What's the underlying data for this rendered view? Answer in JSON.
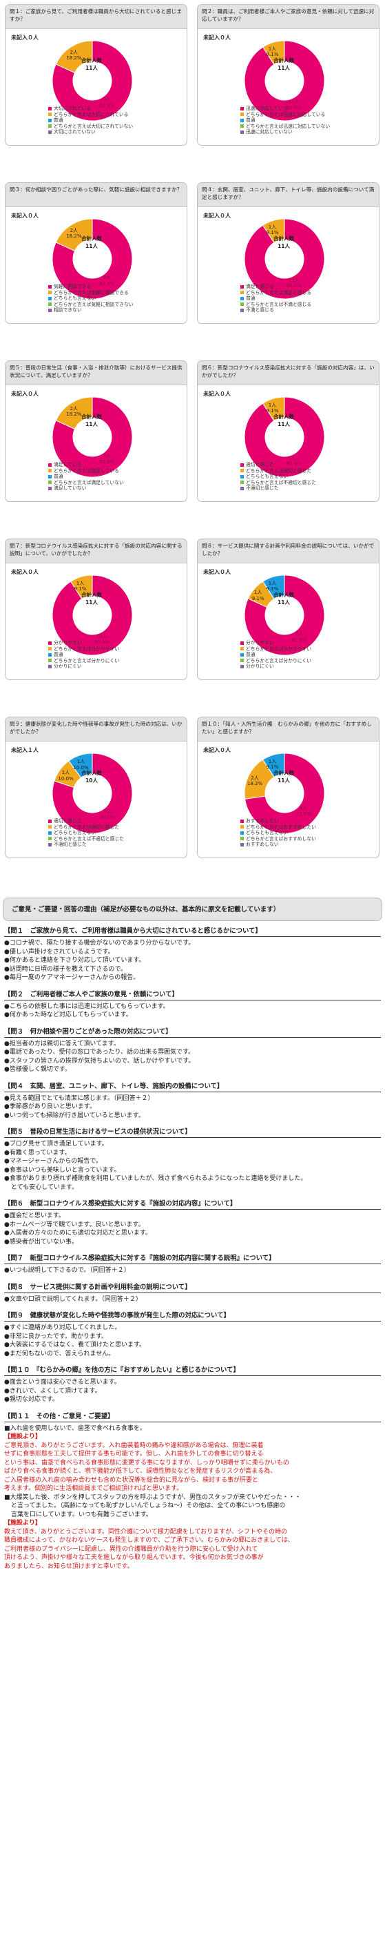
{
  "colors": {
    "pink": "#e5006e",
    "gold": "#f2a81d",
    "blue": "#1b9de0",
    "green": "#79c143",
    "purple": "#8b5ca6",
    "gray": "#a6a6a6"
  },
  "chart_data": [
    {
      "type": "pie",
      "title": "問１：ご家族から見て、ご利用者様は職員から大切にされていると感じますか？",
      "unreported": "未記入０人",
      "center": [
        "合計人数",
        "11人"
      ],
      "slices": [
        {
          "label": "大切にされている",
          "count": "9人",
          "pct": "81.8%",
          "value": 9,
          "color": "pink"
        },
        {
          "label": "どちらかと言えば大切にされている",
          "count": "2人",
          "pct": "18.2%",
          "value": 2,
          "color": "gold"
        }
      ],
      "legend": [
        {
          "label": "大切にされている",
          "color": "pink"
        },
        {
          "label": "どちらかと言えば大切にされている",
          "color": "gold"
        },
        {
          "label": "普通",
          "color": "blue"
        },
        {
          "label": "どちらかと言えば大切にされていない",
          "color": "green"
        },
        {
          "label": "大切にされていない",
          "color": "purple"
        }
      ]
    },
    {
      "type": "pie",
      "title": "問２：職員は、ご利用者様ご本人やご家族の意見・依頼に対して迅速に対応していますか？",
      "unreported": "未記入０人",
      "center": [
        "合計人数",
        "11人"
      ],
      "slices": [
        {
          "label": "迅速に対応している",
          "count": "10人",
          "pct": "90.9%",
          "value": 10,
          "color": "pink"
        },
        {
          "label": "どちらかと言えば迅速に対応している",
          "count": "1人",
          "pct": "9.1%",
          "value": 1,
          "color": "gold"
        }
      ],
      "legend": [
        {
          "label": "迅速に対応している",
          "color": "pink"
        },
        {
          "label": "どちらかと言えば迅速に対応している",
          "color": "gold"
        },
        {
          "label": "普通",
          "color": "blue"
        },
        {
          "label": "どちらかと言えば迅速に対応していない",
          "color": "green"
        },
        {
          "label": "迅速に対応していない",
          "color": "purple"
        }
      ]
    },
    {
      "type": "pie",
      "title": "問３：何か相談や困りごとがあった際に、気軽に施設に相談できますか？",
      "unreported": "未記入０人",
      "center": [
        "合計人数",
        "11人"
      ],
      "slices": [
        {
          "label": "気軽に相談できる",
          "count": "9人",
          "pct": "81.8%",
          "value": 9,
          "color": "pink"
        },
        {
          "label": "どちらかと言えば気軽に相談できる",
          "count": "2人",
          "pct": "18.2%",
          "value": 2,
          "color": "gold"
        }
      ],
      "legend": [
        {
          "label": "気軽に相談できる",
          "color": "pink"
        },
        {
          "label": "どちらかと言えば気軽に相談できる",
          "color": "gold"
        },
        {
          "label": "どちらとも言えない",
          "color": "blue"
        },
        {
          "label": "どちらかと言えば気軽に相談できない",
          "color": "green"
        },
        {
          "label": "相談できない",
          "color": "purple"
        }
      ]
    },
    {
      "type": "pie",
      "title": "問４：玄関、居室、ユニット、廊下、トイレ等、施設内の設備について満足と感じますか？",
      "unreported": "未記入０人",
      "center": [
        "合計人数",
        "11人"
      ],
      "slices": [
        {
          "label": "満足と感じる",
          "count": "10人",
          "pct": "90.9%",
          "value": 10,
          "color": "pink"
        },
        {
          "label": "どちらかと言えば満足と感じる",
          "count": "1人",
          "pct": "9.1%",
          "value": 1,
          "color": "gold"
        }
      ],
      "legend": [
        {
          "label": "満足と感じる",
          "color": "pink"
        },
        {
          "label": "どちらかと言えば満足と感じる",
          "color": "gold"
        },
        {
          "label": "普通",
          "color": "blue"
        },
        {
          "label": "どちらかと言えば不満と感じる",
          "color": "green"
        },
        {
          "label": "不満と感じる",
          "color": "purple"
        }
      ]
    },
    {
      "type": "pie",
      "title": "問５：普段の日常生活（食事・入浴・排泄介助等）におけるサービス提供状況について、満足していますか？",
      "unreported": "未記入０人",
      "center": [
        "合計人数",
        "11人"
      ],
      "slices": [
        {
          "label": "満足している",
          "count": "9人",
          "pct": "81.8%",
          "value": 9,
          "color": "pink"
        },
        {
          "label": "どちらかと言えば満足している",
          "count": "2人",
          "pct": "18.2%",
          "value": 2,
          "color": "gold"
        }
      ],
      "legend": [
        {
          "label": "満足している",
          "color": "pink"
        },
        {
          "label": "どちらかと言えば満足している",
          "color": "gold"
        },
        {
          "label": "普通",
          "color": "blue"
        },
        {
          "label": "どちらかと言えば満足していない",
          "color": "green"
        },
        {
          "label": "満足していない",
          "color": "purple"
        }
      ]
    },
    {
      "type": "pie",
      "title": "問６：新型コロナウイルス感染症拡大に対する「施設の対応内容」は、いかがでしたか？",
      "unreported": "未記入０人",
      "center": [
        "合計人数",
        "11人"
      ],
      "slices": [
        {
          "label": "適切と感じた",
          "count": "10人",
          "pct": "90.9%",
          "value": 10,
          "color": "pink"
        },
        {
          "label": "どちらかと言えば適切と感じた",
          "count": "1人",
          "pct": "9.1%",
          "value": 1,
          "color": "gold"
        }
      ],
      "legend": [
        {
          "label": "適切と感じた",
          "color": "pink"
        },
        {
          "label": "どちらかと言えば適切と感じた",
          "color": "gold"
        },
        {
          "label": "どちらとも言えない",
          "color": "blue"
        },
        {
          "label": "どちらかと言えば不適切と感じた",
          "color": "green"
        },
        {
          "label": "不適切と感じた",
          "color": "purple"
        }
      ]
    },
    {
      "type": "pie",
      "title": "問７：新型コロナウイルス感染症拡大に対する「施設の対応内容に関する説明」について、いかがでしたか？",
      "unreported": "未記入０人",
      "center": [
        "合計人数",
        "11人"
      ],
      "slices": [
        {
          "label": "分かりやすい",
          "count": "10人",
          "pct": "90.9%",
          "value": 10,
          "color": "pink"
        },
        {
          "label": "どちらかと言えば分かりやすい",
          "count": "1人",
          "pct": "9.1%",
          "value": 1,
          "color": "gold"
        }
      ],
      "legend": [
        {
          "label": "分かりやすい",
          "color": "pink"
        },
        {
          "label": "どちらかと言えば分かりやすい",
          "color": "gold"
        },
        {
          "label": "普通",
          "color": "blue"
        },
        {
          "label": "どちらかと言えば分かりにくい",
          "color": "green"
        },
        {
          "label": "分かりにくい",
          "color": "purple"
        }
      ]
    },
    {
      "type": "pie",
      "title": "問８：サービス提供に関する計画や利用料金の説明については、いかがでしたか？",
      "unreported": "未記入０人",
      "center": [
        "合計人数",
        "11人"
      ],
      "slices": [
        {
          "label": "分かりやすい",
          "count": "9人",
          "pct": "81.8%",
          "value": 9,
          "color": "pink"
        },
        {
          "label": "どちらかと言えば分かりやすい",
          "count": "1人",
          "pct": "9.1%",
          "value": 1,
          "color": "gold"
        },
        {
          "label": "普通",
          "count": "1人",
          "pct": "9.1%",
          "value": 1,
          "color": "blue"
        }
      ],
      "legend": [
        {
          "label": "分かりやすい",
          "color": "pink"
        },
        {
          "label": "どちらかと言えば分かりやすい",
          "color": "gold"
        },
        {
          "label": "普通",
          "color": "blue"
        },
        {
          "label": "どちらかと言えば分かりにくい",
          "color": "green"
        },
        {
          "label": "分かりにくい",
          "color": "purple"
        }
      ]
    },
    {
      "type": "pie",
      "title": "問９：健康状態が変化した時や怪我等の事故が発生した時の対応は、いかがでしたか？",
      "unreported": "未記入１人",
      "center": [
        "合計人数",
        "10人"
      ],
      "slices": [
        {
          "label": "適切と感じた",
          "count": "8人",
          "pct": "80.0%",
          "value": 8,
          "color": "pink"
        },
        {
          "label": "どちらかと言えば適切と感じた",
          "count": "1人",
          "pct": "10.0%",
          "value": 1,
          "color": "gold"
        },
        {
          "label": "どちらとも言えない",
          "count": "1人",
          "pct": "10.0%",
          "value": 1,
          "color": "blue"
        }
      ],
      "legend": [
        {
          "label": "適切と感じた",
          "color": "pink"
        },
        {
          "label": "どちらかと言えば適切と感じた",
          "color": "gold"
        },
        {
          "label": "どちらとも言えない",
          "color": "blue"
        },
        {
          "label": "どちらかと言えば不適切と感じた",
          "color": "green"
        },
        {
          "label": "不適切と感じた",
          "color": "purple"
        }
      ]
    },
    {
      "type": "pie",
      "title": "問１０：「知人・入所生活介護　むらかみの郷」を他の方に「おすすめしたい」と感じますか？",
      "unreported": "未記入０人",
      "center": [
        "合計人数",
        "11人"
      ],
      "slices": [
        {
          "label": "おすすめしたい",
          "count": "8人",
          "pct": "72.7%",
          "value": 8,
          "color": "pink"
        },
        {
          "label": "どちらかと言えばおすすめしたい",
          "count": "2人",
          "pct": "18.2%",
          "value": 2,
          "color": "gold"
        },
        {
          "label": "どちらとも言えない",
          "count": "1人",
          "pct": "9.1%",
          "value": 1,
          "color": "blue"
        }
      ],
      "legend": [
        {
          "label": "おすすめしたい",
          "color": "pink"
        },
        {
          "label": "どちらかと言えばおすすめしたい",
          "color": "gold"
        },
        {
          "label": "どちらとも言えない",
          "color": "blue"
        },
        {
          "label": "どちらかと言えばおすすめしない",
          "color": "green"
        },
        {
          "label": "おすすめしない",
          "color": "purple"
        }
      ]
    }
  ],
  "comments": {
    "banner": "ご意見・ご要望・回答の理由（補足が必要なもの以外は、基本的に原文を記載しています）",
    "sections": [
      {
        "heading": "【問１　ご家族から見て、ご利用者様は職員から大切にされていると感じるかについて】",
        "items": [
          {
            "text": "●コロナ禍で、隔たり接する機会がないのであまり分からないです。"
          },
          {
            "text": "●優しい声掛けをされているようです。"
          },
          {
            "text": "●何かあると連絡を下さり対応して頂いています。"
          },
          {
            "text": "●訪問時に日頃の様子を教えて下さるので。"
          },
          {
            "text": "●毎月一度のケアマネージャーさんからの報告。"
          }
        ]
      },
      {
        "heading": "【問２　ご利用者様ご本人やご家族の意見・依頼について】",
        "items": [
          {
            "text": "●こちらの依頼した事には迅速に対応してもらっています。"
          },
          {
            "text": "●何かあった時など対応してもらっています。"
          }
        ]
      },
      {
        "heading": "【問３　何か相談や困りごとがあった際の対応について】",
        "items": [
          {
            "text": "●担当者の方は親切に答えて頂いてます。"
          },
          {
            "text": "●電話であったり、受付の窓口であったり、話の出来る雰囲気です。"
          },
          {
            "text": "●スタッフの皆さんの挨拶が気持ちよいので、話しかけやすいです。"
          },
          {
            "text": "●皆様優しく親切です。"
          }
        ]
      },
      {
        "heading": "【問４　玄関、居室、ユニット、廊下、トイレ等、施設内の設備について】",
        "items": [
          {
            "text": "●見える範囲でとても清潔に感じます。（同回答＋２）"
          },
          {
            "text": "●季節感があり良いと思います。"
          },
          {
            "text": "●いつ伺っても掃除が行き届いていると思います。"
          }
        ]
      },
      {
        "heading": "【問５　普段の日常生活におけるサービスの提供状況について】",
        "items": [
          {
            "text": "●ブログ見せて頂き満足しています。"
          },
          {
            "text": "●有難く思っています。"
          },
          {
            "text": "●マネージャーさんからの報告で。"
          },
          {
            "text": "●食事はいつも美味しいと言っています。"
          },
          {
            "text": "●食事がありまり摂れず補助食を利用していましたが、残さず食べられるようになったと連絡を受けました。"
          },
          {
            "text": "とても安心しています。",
            "indent": true
          }
        ]
      },
      {
        "heading": "【問６　新型コロナウイルス感染症拡大に対する『施設の対応内容』について】",
        "items": [
          {
            "text": "●面会だと思います。"
          },
          {
            "text": "●ホームページ等で観ています。良いと思います。"
          },
          {
            "text": "●入居者の方々のためにも適切な対応だと思います。"
          },
          {
            "text": "●感染者が出ていない事。"
          }
        ]
      },
      {
        "heading": "【問７　新型コロナウイルス感染症拡大に対する『施設の対応内容に関する説明』について】",
        "items": [
          {
            "text": "●いつも説明して下さるので。（同回答＋２）"
          }
        ]
      },
      {
        "heading": "【問８　サービス提供に関する計画や利用料金の説明について】",
        "items": [
          {
            "text": "●文章や口頭で説明してくれます。（同回答＋２）"
          }
        ]
      },
      {
        "heading": "【問９　健康状態が変化した時や怪我等の事故が発生した際の対応について】",
        "items": [
          {
            "text": "●すぐに連絡があり対応してくれました。"
          },
          {
            "text": "●非常に良かったです。助かります。"
          },
          {
            "text": "●大袈裟にするではなく、看て頂けたと思います。"
          },
          {
            "text": "●まだ何もないので、答えられません。"
          }
        ]
      },
      {
        "heading": "【問１０　『むらかみの郷』を他の方に『おすすめしたい』と感じるかについて】",
        "items": [
          {
            "text": "●面会という面は安心できると思います。"
          },
          {
            "text": "●きれいで、よくして頂けてます。"
          },
          {
            "text": "●親切な対応です。"
          }
        ]
      },
      {
        "heading": "【問１１　その他・ご意見・ご要望】",
        "items": [
          {
            "text": "■入れ歯を使用しないで、歯茎で食べれる食事を。"
          },
          {
            "text": "【施設より】",
            "style": "redbold"
          },
          {
            "text": "ご意見頂き、ありがとうございます。入れ歯装着時の痛みや違和感がある場合は、無理に装着",
            "style": "red"
          },
          {
            "text": "せずに食事形態を工夫して提供する事も可能です。但し、入れ歯を外しての食事に切り替える",
            "style": "red"
          },
          {
            "text": "という事は、歯茎で食べられる食事形態に変更する事になりますが、しっかり咀嚼せずに柔らかいもの",
            "style": "red"
          },
          {
            "text": "ばかり食べる食事が続くと、嚥下機能が低下して、誤嚥性肺炎などを発症するリスクが高まる為、",
            "style": "red"
          },
          {
            "text": "ご入居者様の入れ歯の噛み合わせも含めた状況等を総合的に見ながら、検討する事が肝要と",
            "style": "red"
          },
          {
            "text": "考えます。個別的に生活相談員までご相談頂ければと思います。",
            "style": "red"
          },
          {
            "text": "■大爆笑した後、ボタンを押してスタッフの方を呼ぶようですが、男性のスタッフが来ていやだった・・・"
          },
          {
            "text": "と言ってました。（高齢になっても恥ずかしいんでしょうね～）その他は、全ての事にいつも感謝の",
            "indent": true
          },
          {
            "text": "言葉を口にしています。いつも有難うございます。",
            "indent": true
          },
          {
            "text": "【施設より】",
            "style": "redbold"
          },
          {
            "text": "教えて頂き、ありがとうございます。同性介護について極力配慮をしておりますが、シフトやその時の",
            "style": "red"
          },
          {
            "text": "職員構成によって、かなわないケースも発生しますので、ご了承下さい。むらかみの郷におきましては、",
            "style": "red"
          },
          {
            "text": "ご利用者様のプライバシーに配慮し、異性の介護職員が介助を行う際に安心して受け入れて",
            "style": "red"
          },
          {
            "text": "頂けるよう、声掛けや様々な工夫を施しながら取り組んでいます。今後も何かお気づきの事が",
            "style": "red"
          },
          {
            "text": "ありましたら、お知らせ頂けますと幸いです。",
            "style": "red"
          }
        ]
      }
    ]
  }
}
